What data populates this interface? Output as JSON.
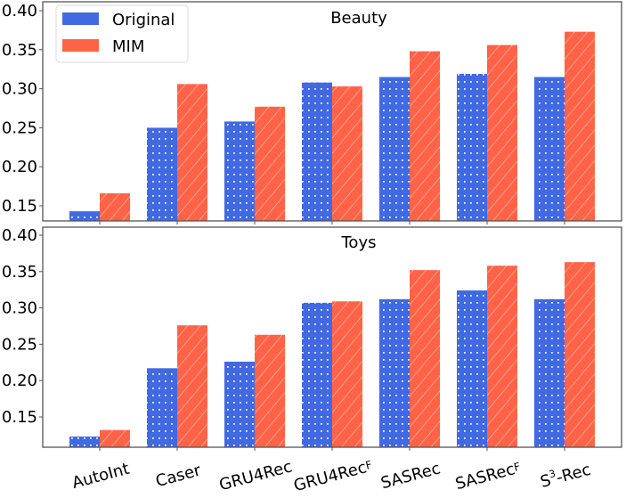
{
  "chart_data": [
    {
      "type": "bar",
      "title": "Beauty",
      "xlabel": "",
      "ylabel": "",
      "ylim": [
        0.13,
        0.405
      ],
      "yticks": [
        0.15,
        0.2,
        0.25,
        0.3,
        0.35,
        0.4
      ],
      "ytick_labels": [
        "0.15",
        "0.20",
        "0.25",
        "0.30",
        "0.35",
        "0.40"
      ],
      "grid": false,
      "legend_position": "upper left",
      "categories": [
        "AutoInt",
        "Caser",
        "GRU4Rec",
        "GRU4RecF",
        "SASRec",
        "SASRecF",
        "S3-Rec"
      ],
      "series": [
        {
          "name": "Original",
          "color": "#4169E1",
          "hatch": "dots",
          "values": [
            0.143,
            0.25,
            0.258,
            0.308,
            0.315,
            0.319,
            0.315
          ]
        },
        {
          "name": "MIM",
          "color": "#FF6347",
          "hatch": "diagonal",
          "values": [
            0.166,
            0.306,
            0.277,
            0.303,
            0.348,
            0.356,
            0.373
          ]
        }
      ]
    },
    {
      "type": "bar",
      "title": "Toys",
      "xlabel": "",
      "ylabel": "",
      "ylim": [
        0.108,
        0.405
      ],
      "yticks": [
        0.15,
        0.2,
        0.25,
        0.3,
        0.35,
        0.4
      ],
      "ytick_labels": [
        "0.15",
        "0.20",
        "0.25",
        "0.30",
        "0.35",
        "0.40"
      ],
      "grid": false,
      "categories": [
        "AutoInt",
        "Caser",
        "GRU4Rec",
        "GRU4RecF",
        "SASRec",
        "SASRecF",
        "S3-Rec"
      ],
      "series": [
        {
          "name": "Original",
          "color": "#4169E1",
          "hatch": "dots",
          "values": [
            0.123,
            0.217,
            0.226,
            0.307,
            0.312,
            0.324,
            0.312
          ]
        },
        {
          "name": "MIM",
          "color": "#FF6347",
          "hatch": "diagonal",
          "values": [
            0.132,
            0.276,
            0.263,
            0.309,
            0.352,
            0.358,
            0.363
          ]
        }
      ]
    }
  ],
  "legend": {
    "items": [
      {
        "label": "Original",
        "color": "#4169E1"
      },
      {
        "label": "MIM",
        "color": "#FF6347"
      }
    ]
  },
  "x_tick_labels": [
    {
      "main": "AutoInt",
      "sub": "",
      "sup": "",
      "rest": ""
    },
    {
      "main": "Caser",
      "sub": "",
      "sup": "",
      "rest": ""
    },
    {
      "main": "GRU4Rec",
      "sub": "",
      "sup": "",
      "rest": ""
    },
    {
      "main": "GRU4Rec",
      "sub": "F",
      "sup": "",
      "rest": ""
    },
    {
      "main": "SASRec",
      "sub": "",
      "sup": "",
      "rest": ""
    },
    {
      "main": "SASRec",
      "sub": "F",
      "sup": "",
      "rest": ""
    },
    {
      "main": "S",
      "sub": "",
      "sup": "3",
      "rest": "-Rec"
    }
  ]
}
